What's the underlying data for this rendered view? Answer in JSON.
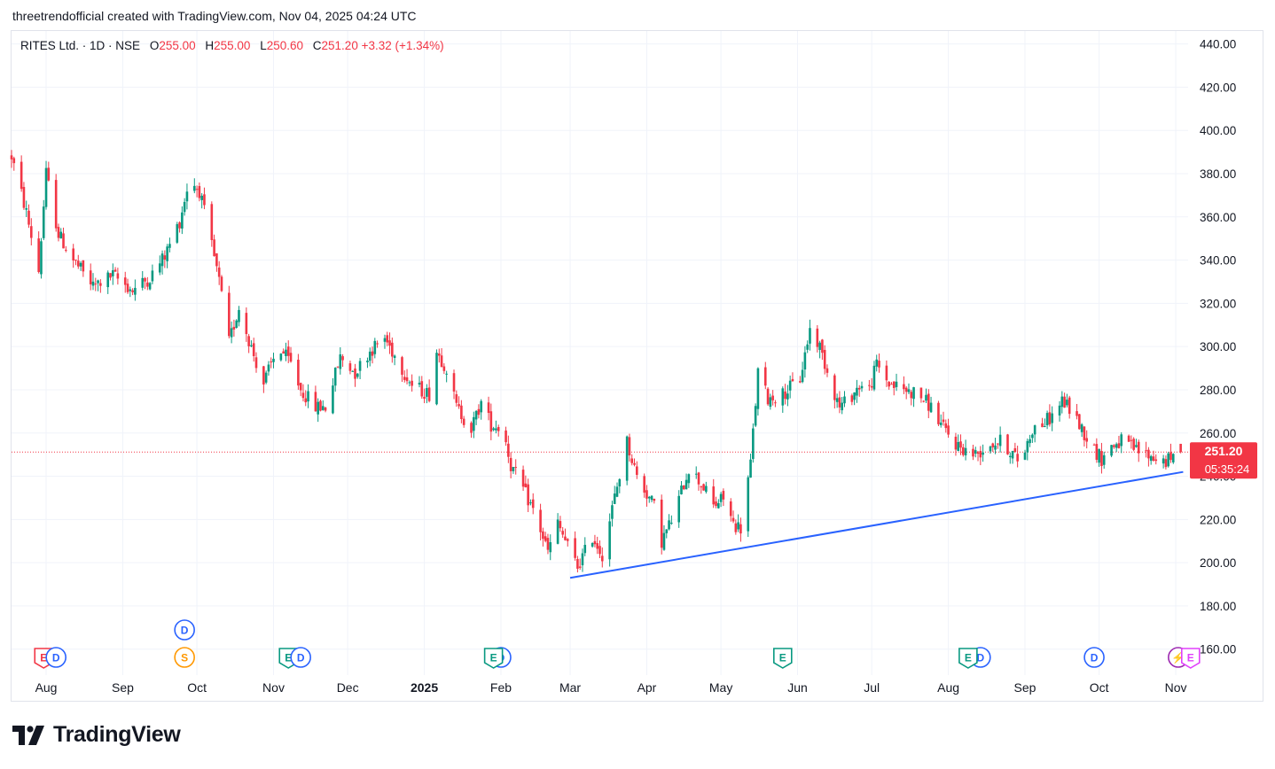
{
  "attribution": "threetrendofficial created with TradingView.com, Nov 04, 2025 04:24 UTC",
  "legend": {
    "symbol": "RITES Ltd. · 1D · NSE",
    "open_label": "O",
    "open": "255.00",
    "high_label": "H",
    "high": "255.00",
    "low_label": "L",
    "low": "250.60",
    "close_label": "C",
    "close": "251.20",
    "change": "+3.32 (+1.34%)"
  },
  "price_tag": {
    "price": "251.20",
    "countdown": "05:35:24"
  },
  "logo_text": "TradingView",
  "colors": {
    "up": "#089981",
    "down": "#f23645",
    "trendline": "#2962ff",
    "grid": "#f0f3fa"
  },
  "chart_data": {
    "type": "candlestick",
    "y_axis": {
      "min": 148,
      "max": 446,
      "ticks": [
        160,
        180,
        200,
        220,
        240,
        260,
        280,
        300,
        320,
        340,
        360,
        380,
        400,
        420,
        440
      ],
      "tick_labels": [
        "160.00",
        "180.00",
        "200.00",
        "220.00",
        "240.00",
        "260.00",
        "280.00",
        "300.00",
        "320.00",
        "340.00",
        "360.00",
        "380.00",
        "400.00",
        "420.00",
        "440.00"
      ]
    },
    "x_axis": {
      "labels": [
        "Aug",
        "Sep",
        "Oct",
        "Nov",
        "Dec",
        "2025",
        "Feb",
        "Mar",
        "Apr",
        "May",
        "Jun",
        "Jul",
        "Aug",
        "Sep",
        "Oct",
        "Nov"
      ],
      "bold": [
        "2025"
      ],
      "label_dates": [
        "2024-08-01",
        "2024-09-01",
        "2024-10-01",
        "2024-11-01",
        "2024-12-01",
        "2025-01-01",
        "2025-02-01",
        "2025-03-01",
        "2025-04-01",
        "2025-05-01",
        "2025-06-01",
        "2025-07-01",
        "2025-08-01",
        "2025-09-01",
        "2025-10-01",
        "2025-11-01"
      ],
      "range": [
        "2024-07-18",
        "2025-11-06"
      ]
    },
    "price_path": [
      [
        "2024-07-18",
        388
      ],
      [
        "2024-07-24",
        362
      ],
      [
        "2024-07-29",
        335
      ],
      [
        "2024-08-01",
        380
      ],
      [
        "2024-08-06",
        352
      ],
      [
        "2024-08-12",
        340
      ],
      [
        "2024-08-20",
        328
      ],
      [
        "2024-08-28",
        333
      ],
      [
        "2024-09-05",
        326
      ],
      [
        "2024-09-12",
        332
      ],
      [
        "2024-09-18",
        342
      ],
      [
        "2024-09-24",
        358
      ],
      [
        "2024-09-28",
        378
      ],
      [
        "2024-10-02",
        372
      ],
      [
        "2024-10-06",
        352
      ],
      [
        "2024-10-10",
        330
      ],
      [
        "2024-10-14",
        302
      ],
      [
        "2024-10-18",
        318
      ],
      [
        "2024-10-24",
        296
      ],
      [
        "2024-10-28",
        283
      ],
      [
        "2024-11-03",
        300
      ],
      [
        "2024-11-08",
        292
      ],
      [
        "2024-11-12",
        280
      ],
      [
        "2024-11-18",
        272
      ],
      [
        "2024-11-22",
        272
      ],
      [
        "2024-11-28",
        295
      ],
      [
        "2024-12-04",
        288
      ],
      [
        "2024-12-10",
        298
      ],
      [
        "2024-12-16",
        304
      ],
      [
        "2024-12-20",
        296
      ],
      [
        "2024-12-27",
        282
      ],
      [
        "2025-01-03",
        278
      ],
      [
        "2025-01-06",
        298
      ],
      [
        "2025-01-10",
        290
      ],
      [
        "2025-01-14",
        272
      ],
      [
        "2025-01-20",
        262
      ],
      [
        "2025-01-24",
        274
      ],
      [
        "2025-01-28",
        264
      ],
      [
        "2025-02-02",
        262
      ],
      [
        "2025-02-05",
        245
      ],
      [
        "2025-02-10",
        234
      ],
      [
        "2025-02-15",
        222
      ],
      [
        "2025-02-20",
        205
      ],
      [
        "2025-02-24",
        218
      ],
      [
        "2025-03-01",
        205
      ],
      [
        "2025-03-04",
        198
      ],
      [
        "2025-03-10",
        212
      ],
      [
        "2025-03-14",
        204
      ],
      [
        "2025-03-18",
        225
      ],
      [
        "2025-03-24",
        256
      ],
      [
        "2025-03-28",
        240
      ],
      [
        "2025-04-04",
        226
      ],
      [
        "2025-04-07",
        210
      ],
      [
        "2025-04-12",
        222
      ],
      [
        "2025-04-18",
        244
      ],
      [
        "2025-04-24",
        235
      ],
      [
        "2025-04-28",
        226
      ],
      [
        "2025-05-02",
        230
      ],
      [
        "2025-05-06",
        218
      ],
      [
        "2025-05-09",
        216
      ],
      [
        "2025-05-13",
        246
      ],
      [
        "2025-05-16",
        288
      ],
      [
        "2025-05-20",
        276
      ],
      [
        "2025-05-26",
        278
      ],
      [
        "2025-06-02",
        285
      ],
      [
        "2025-06-06",
        308
      ],
      [
        "2025-06-10",
        300
      ],
      [
        "2025-06-14",
        285
      ],
      [
        "2025-06-18",
        272
      ],
      [
        "2025-06-22",
        276
      ],
      [
        "2025-06-26",
        282
      ],
      [
        "2025-06-30",
        280
      ],
      [
        "2025-07-03",
        292
      ],
      [
        "2025-07-08",
        283
      ],
      [
        "2025-07-14",
        280
      ],
      [
        "2025-07-20",
        278
      ],
      [
        "2025-07-25",
        272
      ],
      [
        "2025-07-30",
        262
      ],
      [
        "2025-08-04",
        255
      ],
      [
        "2025-08-08",
        252
      ],
      [
        "2025-08-12",
        250
      ],
      [
        "2025-08-18",
        255
      ],
      [
        "2025-08-22",
        256
      ],
      [
        "2025-08-26",
        252
      ],
      [
        "2025-08-30",
        246
      ],
      [
        "2025-09-04",
        262
      ],
      [
        "2025-09-08",
        264
      ],
      [
        "2025-09-12",
        268
      ],
      [
        "2025-09-16",
        275
      ],
      [
        "2025-09-20",
        270
      ],
      [
        "2025-09-24",
        262
      ],
      [
        "2025-09-28",
        254
      ],
      [
        "2025-10-02",
        248
      ],
      [
        "2025-10-06",
        254
      ],
      [
        "2025-10-10",
        256
      ],
      [
        "2025-10-16",
        252
      ],
      [
        "2025-10-22",
        249
      ],
      [
        "2025-10-28",
        247
      ],
      [
        "2025-10-31",
        248
      ],
      [
        "2025-11-03",
        251.2
      ]
    ],
    "last_candle": {
      "date": "2025-11-03",
      "open": 255.0,
      "high": 255.0,
      "low": 250.6,
      "close": 251.2
    },
    "trendline": {
      "start": [
        "2025-03-01",
        193
      ],
      "end": [
        "2025-11-04",
        242
      ]
    },
    "last_price_line": 251.2,
    "events": [
      {
        "date": "2024-07-31",
        "row": 1,
        "text": "E",
        "color": "#f23645"
      },
      {
        "date": "2024-08-05",
        "row": 1,
        "text": "D",
        "color": "#2962ff"
      },
      {
        "date": "2024-09-26",
        "row": 2,
        "text": "D",
        "color": "#2962ff"
      },
      {
        "date": "2024-09-26",
        "row": 1,
        "text": "S",
        "color": "#ff9800"
      },
      {
        "date": "2024-11-07",
        "row": 1,
        "text": "E",
        "color": "#089981"
      },
      {
        "date": "2024-11-12",
        "row": 1,
        "text": "D",
        "color": "#2962ff"
      },
      {
        "date": "2025-02-01",
        "row": 1,
        "text": "D",
        "color": "#2962ff"
      },
      {
        "date": "2025-01-29",
        "row": 1,
        "text": "E",
        "color": "#089981"
      },
      {
        "date": "2025-05-26",
        "row": 1,
        "text": "E",
        "color": "#089981"
      },
      {
        "date": "2025-08-14",
        "row": 1,
        "text": "D",
        "color": "#2962ff"
      },
      {
        "date": "2025-08-09",
        "row": 1,
        "text": "E",
        "color": "#089981"
      },
      {
        "date": "2025-09-29",
        "row": 1,
        "text": "D",
        "color": "#2962ff"
      },
      {
        "date": "2025-11-02",
        "row": 1,
        "text": "⚡",
        "color": "#9c27b0"
      },
      {
        "date": "2025-11-07",
        "row": 1,
        "text": "E",
        "color": "#e040fb"
      }
    ]
  }
}
